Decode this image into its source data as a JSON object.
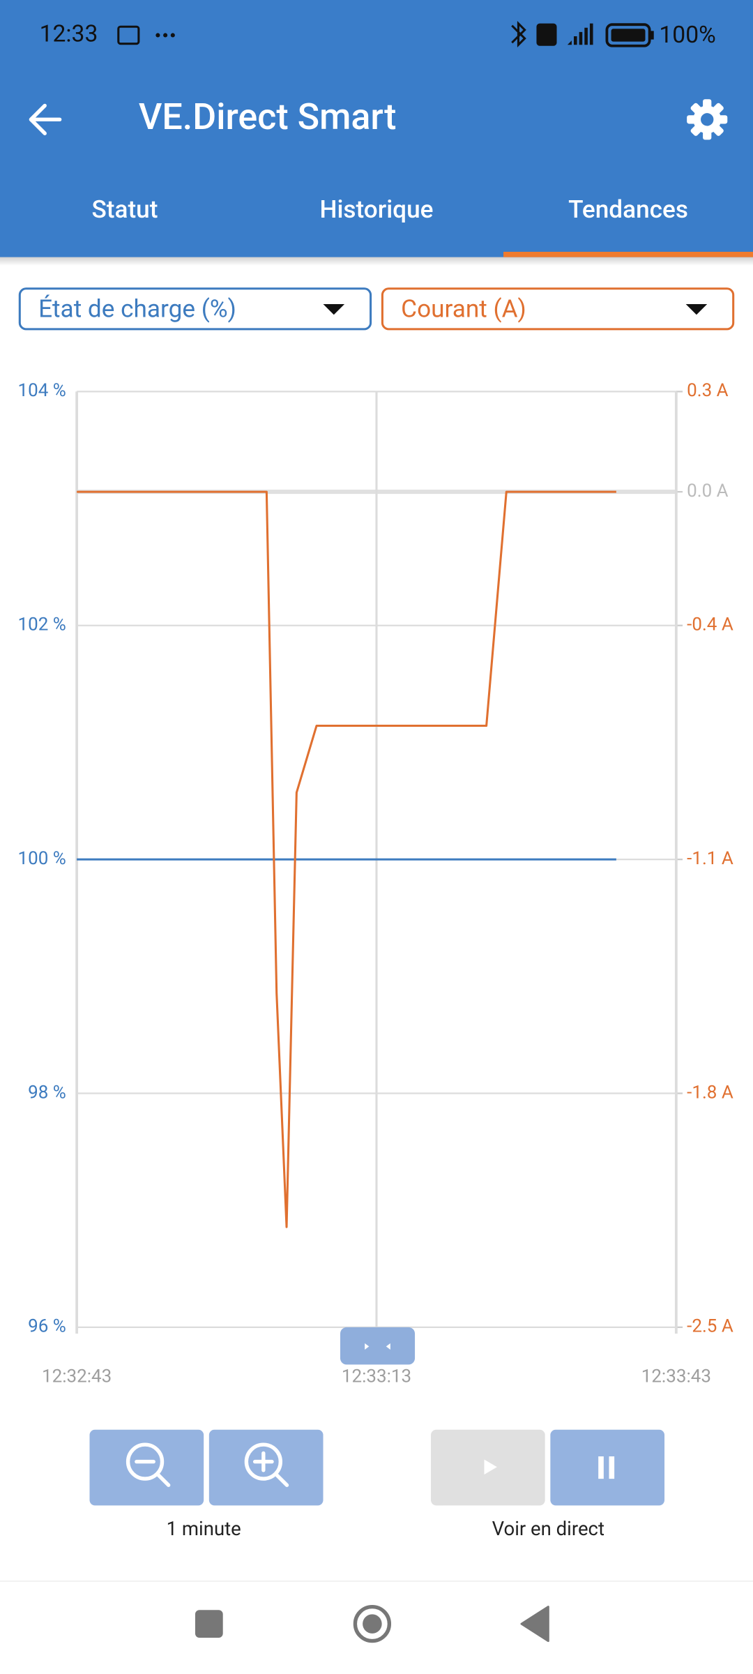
{
  "status_bar": {
    "time": "12:33",
    "battery": "100%"
  },
  "app_bar": {
    "title": "VE.Direct Smart"
  },
  "tabs": [
    "Statut",
    "Historique",
    "Tendances"
  ],
  "chart_data": {
    "type": "line",
    "x": [
      "12:32:43",
      "12:33:02",
      "12:33:03",
      "12:33:04",
      "12:33:05",
      "12:33:07",
      "12:33:24",
      "12:33:26",
      "12:33:37"
    ],
    "xlim": [
      "12:32:43",
      "12:33:43"
    ],
    "xticks": [
      "12:32:43",
      "12:33:13",
      "12:33:43"
    ],
    "ylim": [
      96,
      104
    ],
    "yticks": [
      {
        "value": 96,
        "label": "96 %"
      },
      {
        "value": 98,
        "label": "98 %"
      },
      {
        "value": 100,
        "label": "100 %"
      },
      {
        "value": 102,
        "label": "102 %"
      },
      {
        "value": 104,
        "label": "104 %"
      }
    ],
    "y2lim": [
      -2.5,
      0.3
    ],
    "y2ticks": [
      {
        "value": -2.5,
        "label": "-2.5 A"
      },
      {
        "value": -1.8,
        "label": "-1.8 A"
      },
      {
        "value": -1.1,
        "label": "-1.1 A"
      },
      {
        "value": -0.4,
        "label": "-0.4 A"
      },
      {
        "value": 0.0,
        "label": "0.0 A"
      },
      {
        "value": 0.3,
        "label": "0.3 A"
      }
    ],
    "grid": true,
    "series": [
      {
        "name": "État de charge (%)",
        "color": "#3d7bbf",
        "values": [
          100,
          100,
          100,
          100,
          100,
          100,
          100,
          100,
          100
        ]
      },
      {
        "name": "Courant (A)",
        "color": "#e07030",
        "axis": "y2",
        "values": [
          0.0,
          0.0,
          -1.5,
          -2.2,
          -0.9,
          -0.7,
          -0.7,
          0.0,
          0.0
        ]
      }
    ]
  },
  "controls": {
    "zoom_label": "1 minute",
    "live_label": "Voir en direct"
  }
}
